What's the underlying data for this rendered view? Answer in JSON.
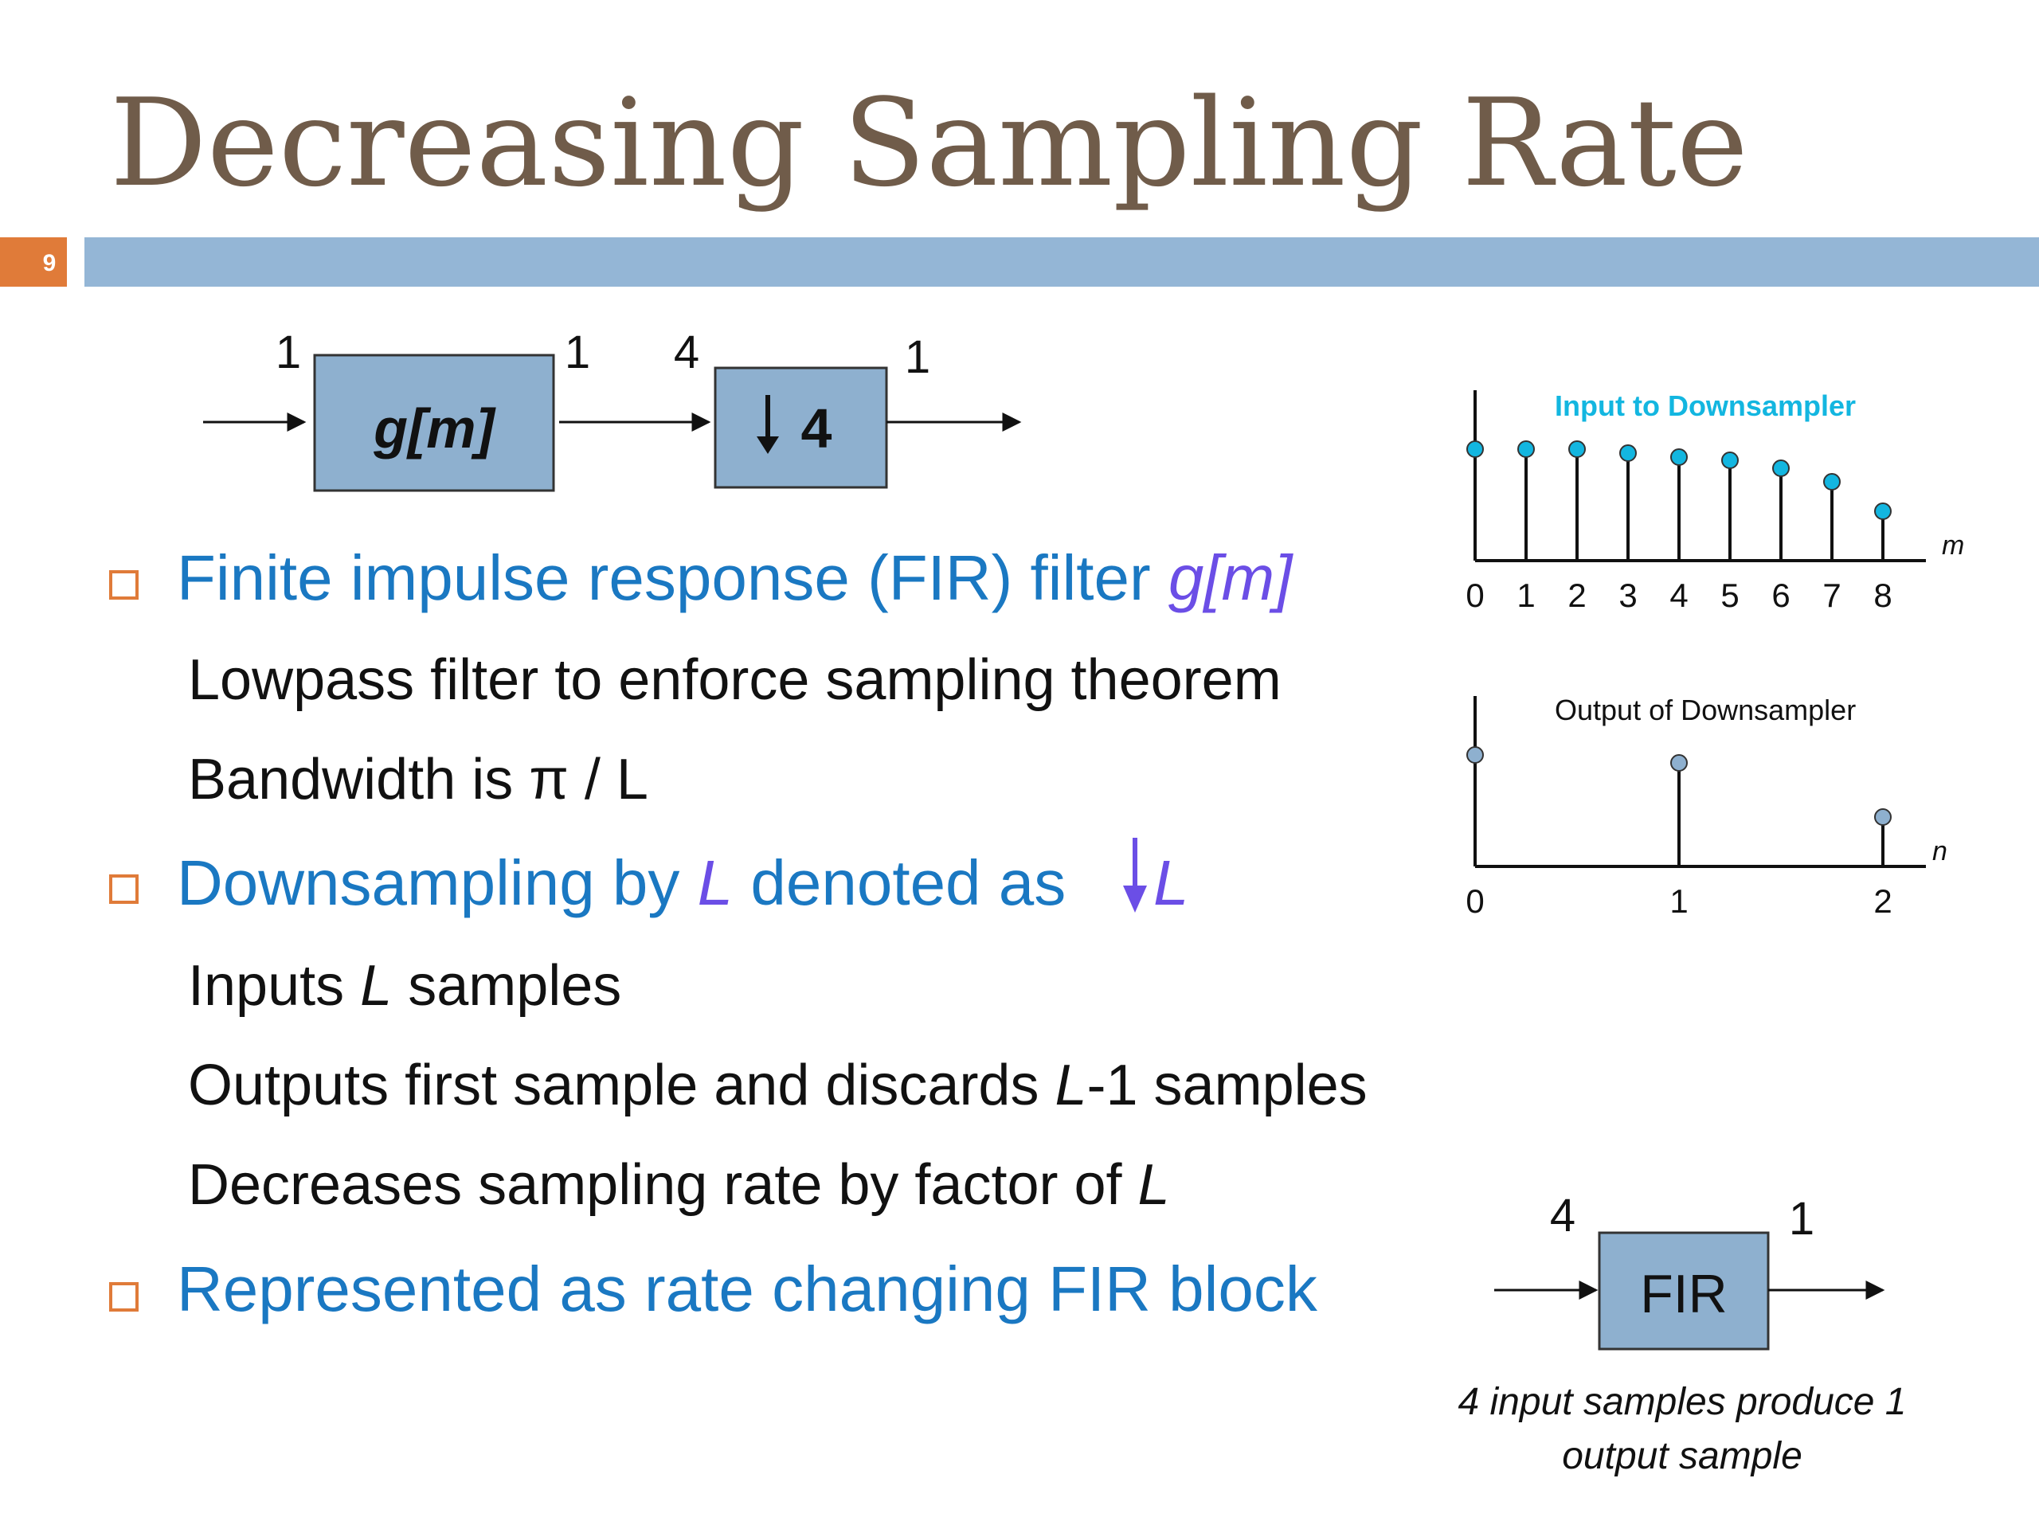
{
  "slide": {
    "title": "Decreasing Sampling Rate",
    "number": "9"
  },
  "top_diagram": {
    "rate_in": "1",
    "rate_mid1": "1",
    "rate_mid2": "4",
    "rate_out": "1",
    "filter_label": "g[m]",
    "downsampler_label": "4"
  },
  "bullets": [
    {
      "text_a": "Finite impulse response (FIR) filter ",
      "text_b": "g[m]"
    },
    {
      "text_a": "Downsampling by ",
      "text_b": "L",
      "text_c": " denoted as ",
      "text_d": "L"
    },
    {
      "text_a": "Represented as rate changing FIR block"
    }
  ],
  "subbullets": {
    "b1": [
      "Lowpass filter to enforce sampling theorem",
      "Bandwidth is π / L"
    ],
    "b2": [
      {
        "a": "Inputs ",
        "b": "L",
        "c": " samples"
      },
      {
        "a": "Outputs first sample and discards ",
        "b": "L",
        "c": "-1 samples"
      },
      {
        "a": "Decreases sampling rate by factor of ",
        "b": "L"
      }
    ]
  },
  "plots": [
    {
      "title": "Input to Downsampler",
      "axis_var": "m",
      "ticks": [
        "0",
        "1",
        "2",
        "3",
        "4",
        "5",
        "6",
        "7",
        "8"
      ],
      "stem_color": "#13b6e0"
    },
    {
      "title": "Output of Downsampler",
      "axis_var": "n",
      "ticks": [
        "0",
        "1",
        "2"
      ],
      "stem_color": "#8eb0cf"
    }
  ],
  "fir_block": {
    "rate_in": "4",
    "rate_out": "1",
    "label": "FIR",
    "caption_line1": "4 input samples produce 1",
    "caption_line2": "output sample"
  },
  "colors": {
    "title": "#705c4a",
    "bar": "#94b6d6",
    "slide_number_bg": "#e07b39",
    "heading_blue": "#1a78c2",
    "italic_purple": "#6b4ee6",
    "block_fill": "#8eb0cf",
    "bullet_box": "#e07b39"
  }
}
